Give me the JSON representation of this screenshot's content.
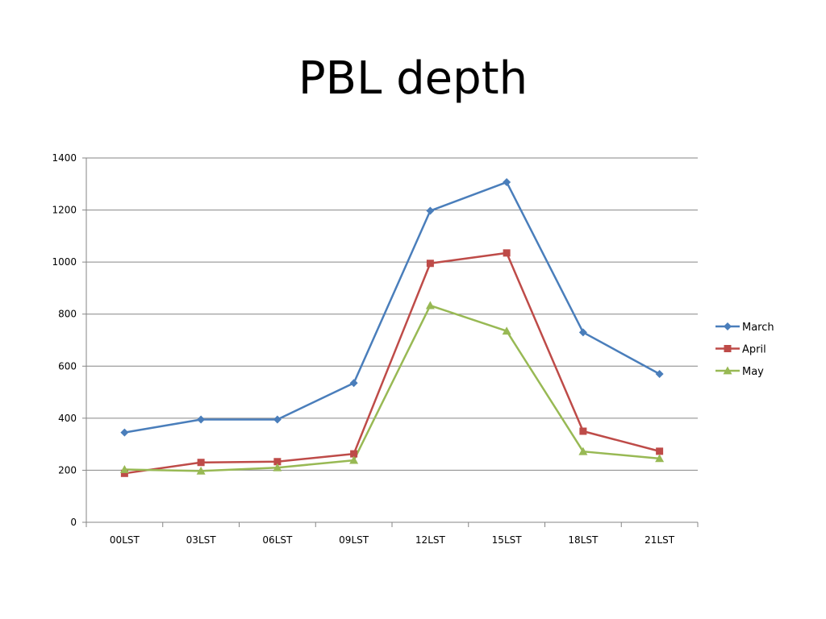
{
  "chart_data": {
    "type": "line",
    "title": "PBL depth",
    "xlabel": "",
    "ylabel": "",
    "categories": [
      "00LST",
      "03LST",
      "06LST",
      "09LST",
      "12LST",
      "15LST",
      "18LST",
      "21LST"
    ],
    "ylim": [
      0,
      1400
    ],
    "yticks": [
      0,
      200,
      400,
      600,
      800,
      1000,
      1200,
      1400
    ],
    "grid": true,
    "legend_position": "right",
    "series": [
      {
        "name": "March",
        "color": "#4a7ebb",
        "marker": "diamond",
        "values": [
          345,
          395,
          395,
          535,
          1197,
          1307,
          730,
          570
        ]
      },
      {
        "name": "April",
        "color": "#be4b48",
        "marker": "square",
        "values": [
          188,
          230,
          233,
          263,
          995,
          1035,
          350,
          273
        ]
      },
      {
        "name": "May",
        "color": "#98b954",
        "marker": "triangle",
        "values": [
          203,
          197,
          210,
          238,
          833,
          735,
          272,
          245
        ]
      }
    ]
  }
}
